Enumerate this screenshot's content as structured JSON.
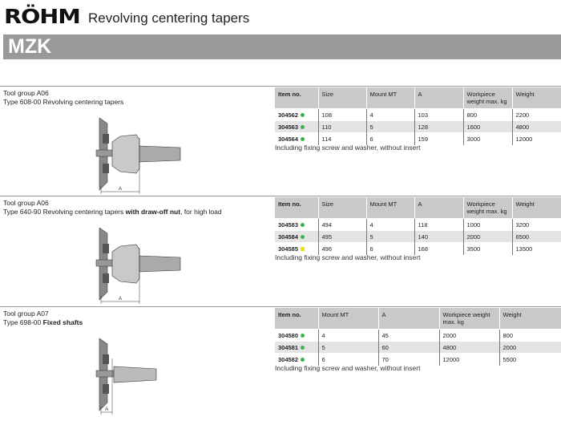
{
  "header": {
    "logo": "RÖHM",
    "title": "Revolving centering tapers",
    "code": "MZK"
  },
  "colors": {
    "available": "#3cb44a",
    "on_request": "#f2e200",
    "bar": "#98999b"
  },
  "sections": [
    {
      "group": "Tool group A06",
      "type_plain": "Type 608-00 Revolving centering tapers",
      "type_bold": "",
      "type_suffix": "",
      "columns": [
        "Item no.",
        "Size",
        "Mount MT",
        "A",
        "Workpiece weight max. kg",
        "Weight"
      ],
      "rows": [
        [
          "304562",
          "108",
          "4",
          "103",
          "800",
          "2200"
        ],
        [
          "304563",
          "110",
          "5",
          "128",
          "1600",
          "4800"
        ],
        [
          "304564",
          "114",
          "6",
          "159",
          "3000",
          "12000"
        ]
      ],
      "status": [
        "green",
        "green",
        "green"
      ],
      "note": "Including fixing screw and washer, without insert",
      "dim_label": "A"
    },
    {
      "group": "Tool group A06",
      "type_plain": "Type 640-90 Revolving centering tapers ",
      "type_bold": "with draw-off nut",
      "type_suffix": ", for high load",
      "columns": [
        "Item no.",
        "Size",
        "Mount MT",
        "A",
        "Workpiece weight max. kg",
        "Weight"
      ],
      "rows": [
        [
          "304583",
          "494",
          "4",
          "118",
          "1000",
          "3200"
        ],
        [
          "304584",
          "495",
          "5",
          "140",
          "2000",
          "6500"
        ],
        [
          "304585",
          "496",
          "6",
          "168",
          "3500",
          "13500"
        ]
      ],
      "status": [
        "green",
        "green",
        "yellow"
      ],
      "note": "Including fixing screw and washer, without insert",
      "dim_label": "A"
    },
    {
      "group": "Tool group A07",
      "type_plain": "Type 698-00 ",
      "type_bold": "Fixed shafts",
      "type_suffix": "",
      "columns": [
        "Item no.",
        "Mount MT",
        "A",
        "Workpiece weight max. kg",
        "Weight"
      ],
      "rows": [
        [
          "304580",
          "4",
          "45",
          "2000",
          "800"
        ],
        [
          "304581",
          "5",
          "60",
          "4800",
          "2000"
        ],
        [
          "304582",
          "6",
          "70",
          "12000",
          "5500"
        ]
      ],
      "status": [
        "green",
        "green",
        "green"
      ],
      "note": "Including fixing screw and washer, without insert",
      "dim_label": "A"
    }
  ]
}
